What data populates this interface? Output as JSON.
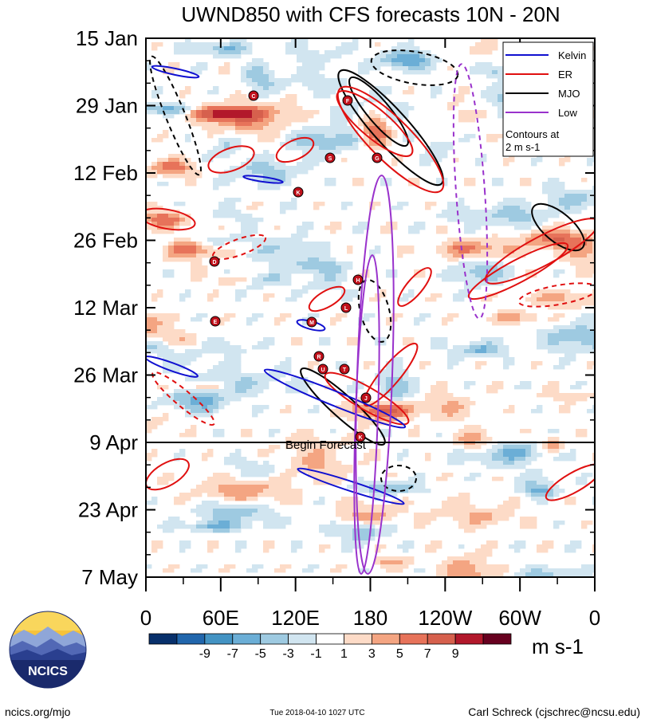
{
  "chart_data": {
    "type": "heatmap",
    "title": "UWND850 with CFS forecasts  10N - 20N",
    "xlabel": "",
    "ylabel": "",
    "x_ticks": [
      "0",
      "60E",
      "120E",
      "180",
      "120W",
      "60W",
      "0"
    ],
    "y_ticks": [
      "15 Jan",
      "29 Jan",
      "12 Feb",
      "26 Feb",
      "12 Mar",
      "26 Mar",
      "9 Apr",
      "23 Apr",
      "7 May"
    ],
    "forecast_line_label": "Begin Forecast",
    "colorbar": {
      "units": "m s-1",
      "tick_labels": [
        "-9",
        "-7",
        "-5",
        "-3",
        "-1",
        "1",
        "3",
        "5",
        "7",
        "9"
      ],
      "colors": [
        "#08306b",
        "#2166ac",
        "#4393c3",
        "#6baed6",
        "#9ecae1",
        "#d1e5f0",
        "#ffffff",
        "#fddbc7",
        "#f4a582",
        "#e7735a",
        "#d6604d",
        "#b2182b",
        "#67001f"
      ]
    },
    "legend": {
      "items": [
        {
          "name": "Kelvin",
          "color": "#1010d0"
        },
        {
          "name": "ER",
          "color": "#e01010"
        },
        {
          "name": "MJO",
          "color": "#000000"
        },
        {
          "name": "Low",
          "color": "#9932cc"
        }
      ],
      "note_line1": "Contours at",
      "note_line2": "2 m s-1"
    },
    "storm_markers": [
      "C",
      "F",
      "S",
      "G",
      "K",
      "D",
      "H",
      "L",
      "E",
      "M",
      "R",
      "U",
      "T",
      "J",
      "K"
    ]
  },
  "logo": {
    "text": "NCICS"
  },
  "footer": {
    "left": "ncics.org/mjo",
    "center": "Tue 2018-04-10 1027 UTC",
    "right": "Carl Schreck (cjschrec@ncsu.edu)"
  }
}
